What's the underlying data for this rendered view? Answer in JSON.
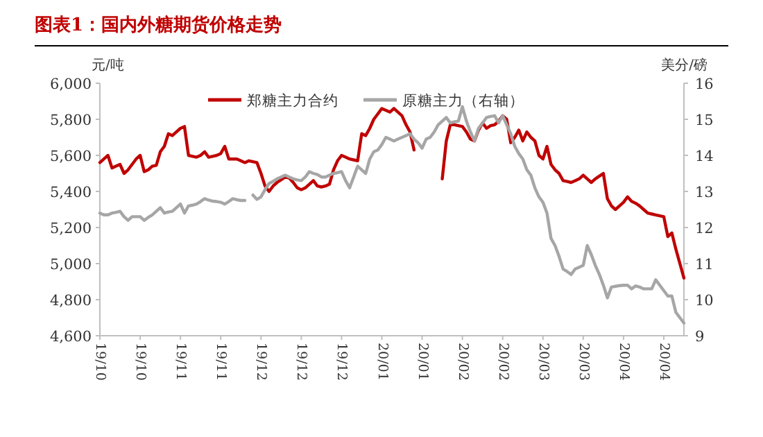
{
  "chart_data": {
    "type": "line",
    "title": "图表1：国内外糖期货价格走势",
    "ylabel": "元/吨",
    "y2label": "美分/磅",
    "legend": "top",
    "categories": [
      "19/10",
      null,
      null,
      null,
      null,
      null,
      null,
      null,
      null,
      null,
      "19/10",
      null,
      null,
      null,
      null,
      null,
      null,
      null,
      null,
      null,
      "19/11",
      null,
      null,
      null,
      null,
      null,
      null,
      null,
      null,
      null,
      "19/11",
      null,
      null,
      null,
      null,
      null,
      null,
      null,
      null,
      null,
      "19/12",
      null,
      null,
      null,
      null,
      null,
      null,
      null,
      null,
      null,
      "19/12",
      null,
      null,
      null,
      null,
      null,
      null,
      null,
      null,
      null,
      "19/12",
      null,
      null,
      null,
      null,
      null,
      null,
      null,
      null,
      null,
      "20/01",
      null,
      null,
      null,
      null,
      null,
      null,
      null,
      null,
      null,
      "20/01",
      null,
      null,
      null,
      null,
      null,
      null,
      null,
      null,
      null,
      "20/02",
      null,
      null,
      null,
      null,
      null,
      null,
      null,
      null,
      null,
      "20/02",
      null,
      null,
      null,
      null,
      null,
      null,
      null,
      null,
      null,
      "20/03",
      null,
      null,
      null,
      null,
      null,
      null,
      null,
      null,
      null,
      "20/03",
      null,
      null,
      null,
      null,
      null,
      null,
      null,
      null,
      null,
      "20/04",
      null,
      null,
      null,
      null,
      null,
      null,
      null,
      null,
      null,
      "20/04",
      null,
      null,
      null,
      null,
      null
    ],
    "ylim": [
      4600,
      6000
    ],
    "yticks": [
      {
        "value": 4600,
        "label": "4,600"
      },
      {
        "value": 4800,
        "label": "4,800"
      },
      {
        "value": 5000,
        "label": "5,000"
      },
      {
        "value": 5200,
        "label": "5,200"
      },
      {
        "value": 5400,
        "label": "5,400"
      },
      {
        "value": 5600,
        "label": "5,600"
      },
      {
        "value": 5800,
        "label": "5,800"
      },
      {
        "value": 6000,
        "label": "6,000"
      }
    ],
    "y2lim": [
      9,
      16
    ],
    "y2ticks": [
      9,
      10,
      11,
      12,
      13,
      14,
      15,
      16
    ],
    "series": [
      {
        "name": "郑糖主力合约",
        "color": "#c00000",
        "values": [
          5560,
          5580,
          5600,
          5530,
          5540,
          5550,
          5500,
          5520,
          5550,
          5580,
          5600,
          5510,
          5520,
          5540,
          5545,
          5620,
          5650,
          5720,
          5710,
          5730,
          5750,
          5760,
          5600,
          5595,
          5590,
          5600,
          5620,
          5590,
          5595,
          5600,
          5610,
          5650,
          5580,
          5580,
          5580,
          5570,
          5560,
          5570,
          5565,
          5560,
          5500,
          5430,
          5400,
          5430,
          5450,
          5465,
          5480,
          5475,
          5450,
          5420,
          5410,
          5420,
          5440,
          5460,
          5430,
          5425,
          5430,
          5440,
          5520,
          5570,
          5600,
          5590,
          5580,
          5575,
          5570,
          5720,
          5710,
          5750,
          5800,
          5830,
          5860,
          5850,
          5840,
          5860,
          5840,
          5820,
          5770,
          5730,
          5630,
          null,
          null,
          null,
          null,
          null,
          null,
          5470,
          5680,
          5770,
          5770,
          5765,
          5760,
          5730,
          5690,
          5680,
          5740,
          5780,
          5750,
          5765,
          5770,
          5790,
          5820,
          5800,
          5670,
          5700,
          5740,
          5680,
          5730,
          5700,
          5680,
          5600,
          5580,
          5650,
          5550,
          5520,
          5500,
          5460,
          5455,
          5450,
          5460,
          5470,
          5490,
          5470,
          5450,
          5470,
          5485,
          5500,
          5360,
          5320,
          5300,
          5320,
          5340,
          5370,
          5345,
          5335,
          5320,
          5300,
          5280,
          5275,
          5270,
          5265,
          5260,
          5150,
          5170,
          5080,
          5000,
          4920
        ]
      },
      {
        "name": "原糖主力（右轴）",
        "color": "#a6a6a6",
        "axis": "y2",
        "values": [
          12.4,
          12.35,
          12.35,
          12.4,
          12.42,
          12.45,
          12.3,
          12.2,
          12.3,
          12.3,
          12.3,
          12.2,
          12.28,
          12.35,
          12.45,
          12.55,
          12.4,
          12.43,
          12.45,
          12.55,
          12.65,
          12.4,
          12.6,
          12.62,
          12.65,
          12.72,
          12.8,
          12.76,
          12.73,
          12.72,
          12.7,
          12.65,
          12.72,
          12.8,
          12.77,
          12.75,
          12.75,
          null,
          12.9,
          12.78,
          12.85,
          13.05,
          13.22,
          13.28,
          13.35,
          13.4,
          13.45,
          13.4,
          13.35,
          13.32,
          13.3,
          13.4,
          13.55,
          13.5,
          13.47,
          13.4,
          13.4,
          13.45,
          13.5,
          13.52,
          13.55,
          13.3,
          13.1,
          13.4,
          13.7,
          13.6,
          13.5,
          13.9,
          14.1,
          14.15,
          14.3,
          14.5,
          14.45,
          14.4,
          14.45,
          14.5,
          14.55,
          14.6,
          14.45,
          14.35,
          14.2,
          14.45,
          14.5,
          14.65,
          14.85,
          14.95,
          15.05,
          14.9,
          14.93,
          14.95,
          15.35,
          14.95,
          14.65,
          14.4,
          14.75,
          14.9,
          15.05,
          15.08,
          15.1,
          14.9,
          15.1,
          14.85,
          14.6,
          14.25,
          14.05,
          13.9,
          13.6,
          13.45,
          13.1,
          12.85,
          12.7,
          12.4,
          11.7,
          11.5,
          11.2,
          10.85,
          10.78,
          10.7,
          10.85,
          10.9,
          10.95,
          11.5,
          11.25,
          10.95,
          10.7,
          10.4,
          10.05,
          10.35,
          10.37,
          10.39,
          10.4,
          10.4,
          10.3,
          10.38,
          10.35,
          10.3,
          10.3,
          10.3,
          10.55,
          10.4,
          10.25,
          10.1,
          10.1,
          9.65,
          9.5,
          9.35
        ]
      }
    ]
  }
}
